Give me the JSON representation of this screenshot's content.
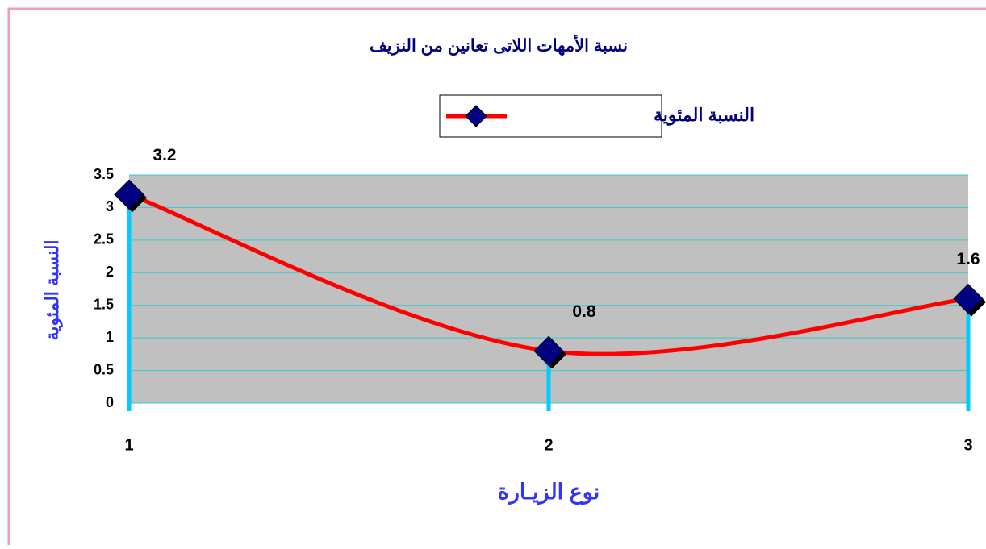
{
  "chart_data": {
    "type": "line",
    "title": "نسبة الأمهات اللاتى تعانين من النزيف",
    "x_label": "نوع الزيـارة",
    "y_label": "النسبة المئوية",
    "categories": [
      "1",
      "2",
      "3"
    ],
    "series": [
      {
        "name": "النسبة المئوية",
        "color": "#ff0000",
        "marker_color": "#000080",
        "values": [
          3.2,
          0.8,
          1.6
        ]
      }
    ],
    "ylim": [
      0,
      3.5
    ],
    "yticks": [
      0,
      0.5,
      1,
      1.5,
      2,
      2.5,
      3,
      3.5
    ],
    "grid": true,
    "grid_color": "#33cccc",
    "plot_background": "#c0c0c0",
    "drop_lines": true,
    "drop_line_color": "#00ccff",
    "data_labels": true,
    "smooth": true,
    "legend": "top"
  }
}
